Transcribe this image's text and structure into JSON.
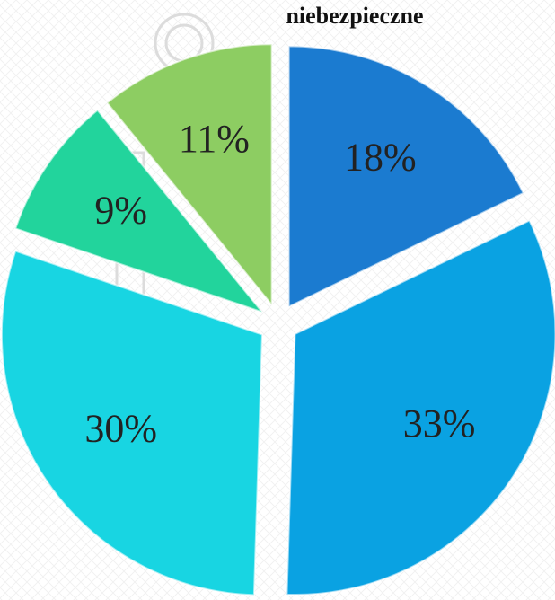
{
  "chart_data": {
    "type": "pie",
    "title": "niebezpieczne",
    "values": [
      18,
      33,
      30,
      9,
      11
    ],
    "value_labels": [
      "18%",
      "33%",
      "30%",
      "9%",
      "11%"
    ],
    "colors": [
      "#1b7bd0",
      "#0aa2e2",
      "#18d5e2",
      "#22d49c",
      "#8dcd62"
    ]
  }
}
